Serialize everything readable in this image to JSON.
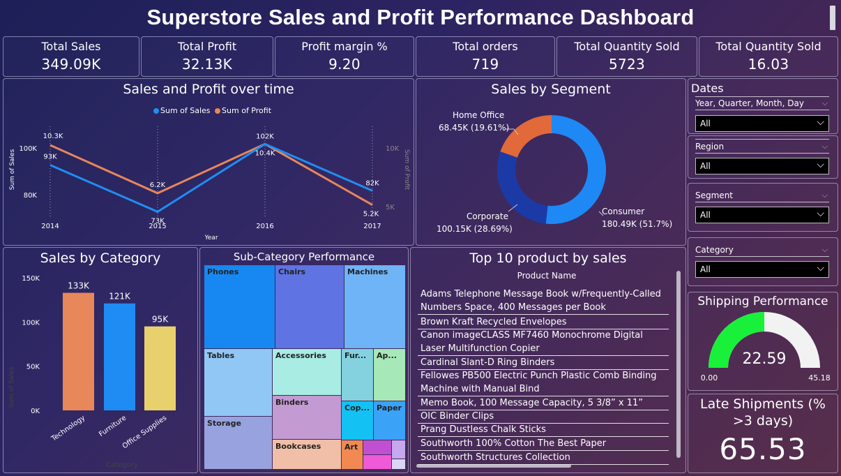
{
  "dashboard": {
    "title": "Superstore Sales and Profit Performance Dashboard"
  },
  "kpis": [
    {
      "label": "Total Sales",
      "value": "349.09K"
    },
    {
      "label": "Total Profit",
      "value": "32.13K"
    },
    {
      "label": "Profit margin %",
      "value": "9.20"
    },
    {
      "label": "Total orders",
      "value": "719"
    },
    {
      "label": "Total Quantity Sold",
      "value": "5723"
    },
    {
      "label": "Total Quantity Sold",
      "value": "16.03"
    }
  ],
  "line_chart": {
    "title": "Sales and Profit over time",
    "legend": [
      "Sum of Sales",
      "Sum of Profit"
    ],
    "ylabel_left": "Sum of Sales",
    "ylabel_right": "Sum of Profit",
    "xlabel": "Year",
    "left_ticks": [
      "100K",
      "80K"
    ],
    "right_ticks": [
      "10K",
      "5K"
    ],
    "x_ticks": [
      "2014",
      "2015",
      "2016",
      "2017"
    ],
    "sales_labels": [
      "93K",
      "73K",
      "102K",
      "82K"
    ],
    "profit_labels": [
      "10.3K",
      "6.2K",
      "10.4K",
      "5.2K"
    ]
  },
  "donut": {
    "title": "Sales by Segment",
    "slices": [
      {
        "name": "Consumer",
        "label": "180.49K (51.7%)"
      },
      {
        "name": "Corporate",
        "label": "100.15K (28.69%)"
      },
      {
        "name": "Home Office",
        "label": "68.45K (19.61%)"
      }
    ]
  },
  "slicers": {
    "title": "Dates",
    "date_field": "Year, Quarter, Month, Day",
    "date_value": "All",
    "region_label": "Region",
    "region_value": "All",
    "segment_label": "Segment",
    "segment_value": "All",
    "category_label": "Category",
    "category_value": "All"
  },
  "bar_chart": {
    "title": "Sales by Category",
    "ylabel": "Sum of Sales",
    "xlabel": "Category",
    "y_ticks": [
      "150K",
      "100K",
      "50K",
      "0K"
    ],
    "categories": [
      "Technology",
      "Furniture",
      "Office Supplies"
    ],
    "value_labels": [
      "133K",
      "121K",
      "95K"
    ]
  },
  "treemap": {
    "title": "Sub-Category Performance",
    "cells": [
      "Phones",
      "Chairs",
      "Machines",
      "Tables",
      "Accessories",
      "Fur...",
      "Ap...",
      "Binders",
      "Cop...",
      "Paper",
      "Storage",
      "Bookcases",
      "Art"
    ]
  },
  "top_products": {
    "title": "Top 10 product by sales",
    "header": "Product Name",
    "rows": [
      "Adams Telephone Message Book w/Frequently-Called Numbers Space, 400 Messages per Book",
      "Brown Kraft Recycled Envelopes",
      "Canon imageCLASS MF7460 Monochrome Digital Laser Multifunction Copier",
      "Cardinal Slant-D Ring Binders",
      "Fellowes PB500 Electric Punch Plastic Comb Binding Machine with Manual Bind",
      "Memo Book, 100 Message Capacity, 5 3/8” x 11”",
      "OIC Binder Clips",
      "Prang Dustless Chalk Sticks",
      "Southworth 100% Cotton The Best Paper",
      "Southworth Structures Collection"
    ]
  },
  "gauge": {
    "title": "Shipping Performance",
    "value": "22.59",
    "min": "0.00",
    "max": "45.18"
  },
  "late": {
    "title": "Late Shipments (% >3 days)",
    "value": "65.53"
  },
  "chart_data": [
    {
      "type": "line",
      "title": "Sales and Profit over time",
      "xlabel": "Year",
      "ylabel": "Sum of Sales",
      "x": [
        2014,
        2015,
        2016,
        2017
      ],
      "series": [
        {
          "name": "Sum of Sales",
          "values": [
            93000,
            73000,
            102000,
            82000
          ],
          "color": "#1f8ef1"
        },
        {
          "name": "Sum of Profit",
          "values": [
            10300,
            6200,
            10400,
            5200
          ],
          "color": "#e8865a"
        }
      ],
      "ylim": [
        73000,
        103000
      ],
      "ylim_right": [
        5000,
        11000
      ]
    },
    {
      "type": "pie",
      "title": "Sales by Segment",
      "categories": [
        "Consumer",
        "Corporate",
        "Home Office"
      ],
      "values": [
        180490,
        100150,
        68450
      ],
      "colors": [
        "#1e88f5",
        "#1c3aa6",
        "#e2693a"
      ]
    },
    {
      "type": "bar",
      "title": "Sales by Category",
      "xlabel": "Category",
      "ylabel": "Sum of Sales",
      "categories": [
        "Technology",
        "Furniture",
        "Office Supplies"
      ],
      "values": [
        133000,
        121000,
        95000
      ],
      "colors": [
        "#e8875a",
        "#1e8cf2",
        "#e8d16c"
      ],
      "ylim": [
        0,
        150000
      ]
    },
    {
      "type": "treemap",
      "title": "Sub-Category Performance",
      "categories": [
        "Phones",
        "Chairs",
        "Machines",
        "Tables",
        "Accessories",
        "Furnishings",
        "Appliances",
        "Binders",
        "Copiers",
        "Paper",
        "Storage",
        "Bookcases",
        "Art"
      ]
    }
  ],
  "gauge_data": {
    "value": 22.59,
    "min": 0,
    "max": 45.18,
    "fill_color": "#19f03a"
  }
}
